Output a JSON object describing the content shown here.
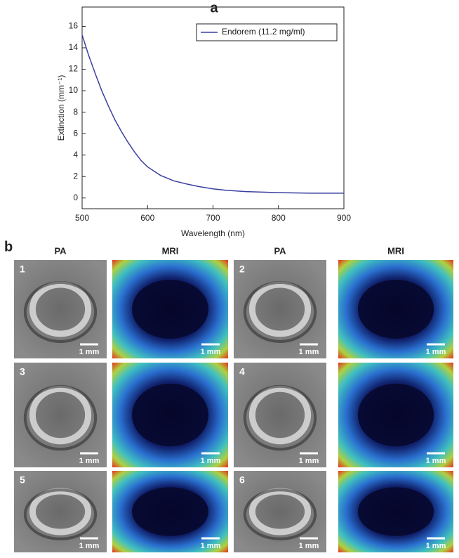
{
  "chart_data": {
    "type": "line",
    "panel_label": "a",
    "x_label": "Wavelength (nm)",
    "y_label": "Extinction (mm⁻¹)",
    "x": [
      500,
      510,
      520,
      530,
      540,
      550,
      560,
      570,
      580,
      590,
      600,
      620,
      640,
      660,
      680,
      700,
      720,
      750,
      800,
      850,
      900
    ],
    "series": [
      {
        "name": "Endorem (11.2 mg/ml)",
        "color": "#3b3fa0",
        "values": [
          15.2,
          13.3,
          11.6,
          10.0,
          8.6,
          7.3,
          6.2,
          5.2,
          4.3,
          3.5,
          2.9,
          2.1,
          1.6,
          1.3,
          1.05,
          0.85,
          0.72,
          0.6,
          0.5,
          0.45,
          0.45
        ]
      }
    ],
    "xlim": [
      500,
      900
    ],
    "xticks": [
      500,
      600,
      700,
      800,
      900
    ],
    "ylim": [
      -1,
      17.8
    ],
    "yticks": [
      0,
      2,
      4,
      6,
      8,
      10,
      12,
      14,
      16
    ],
    "legend": "upper right"
  },
  "panel_b": {
    "label": "b",
    "column_headers": [
      "PA",
      "MRI",
      "PA",
      "MRI"
    ],
    "rows": [
      [
        {
          "kind": "PA",
          "number": "1",
          "scale": "1 mm"
        },
        {
          "kind": "MRI",
          "scale": "1 mm"
        },
        {
          "kind": "PA",
          "number": "2",
          "scale": "1 mm"
        },
        {
          "kind": "MRI",
          "scale": "1 mm"
        }
      ],
      [
        {
          "kind": "PA",
          "number": "3",
          "scale": "1 mm"
        },
        {
          "kind": "MRI",
          "scale": "1 mm"
        },
        {
          "kind": "PA",
          "number": "4",
          "scale": "1 mm"
        },
        {
          "kind": "MRI",
          "scale": "1 mm"
        }
      ],
      [
        {
          "kind": "PA",
          "number": "5",
          "scale": "1 mm"
        },
        {
          "kind": "MRI",
          "scale": "1 mm"
        },
        {
          "kind": "PA",
          "number": "6",
          "scale": "1 mm"
        },
        {
          "kind": "MRI",
          "scale": "1 mm"
        }
      ]
    ]
  }
}
